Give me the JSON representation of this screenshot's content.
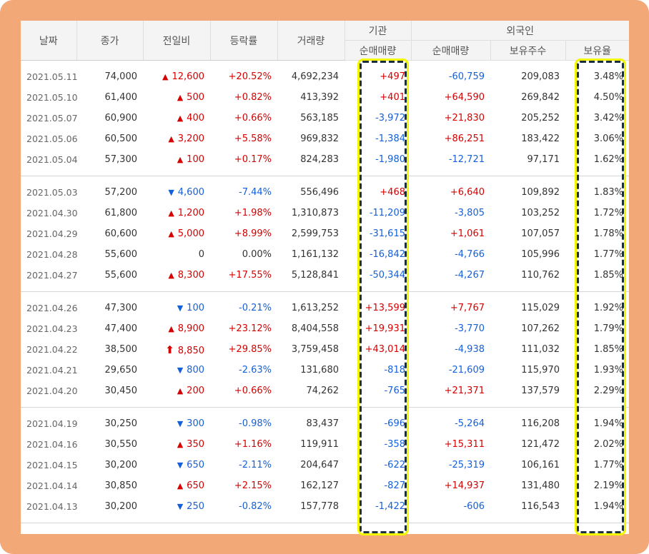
{
  "headers": {
    "date": "날짜",
    "close": "종가",
    "change": "전일비",
    "rate": "등락률",
    "volume": "거래량",
    "institution": "기관",
    "inst_net": "순매매량",
    "foreign": "외국인",
    "foreign_net": "순매매량",
    "holdings": "보유주수",
    "ownership": "보유율"
  },
  "groups": [
    [
      {
        "date": "2021.05.11",
        "close": "74,000",
        "dir": "up",
        "change": "12,600",
        "rate": "+20.52%",
        "volume": "4,692,234",
        "inst": "+497",
        "foreign": "-60,759",
        "holdings": "209,083",
        "ownership": "3.48%"
      },
      {
        "date": "2021.05.10",
        "close": "61,400",
        "dir": "up",
        "change": "500",
        "rate": "+0.82%",
        "volume": "413,392",
        "inst": "+401",
        "foreign": "+64,590",
        "holdings": "269,842",
        "ownership": "4.50%"
      },
      {
        "date": "2021.05.07",
        "close": "60,900",
        "dir": "up",
        "change": "400",
        "rate": "+0.66%",
        "volume": "563,185",
        "inst": "-3,972",
        "foreign": "+21,830",
        "holdings": "205,252",
        "ownership": "3.42%"
      },
      {
        "date": "2021.05.06",
        "close": "60,500",
        "dir": "up",
        "change": "3,200",
        "rate": "+5.58%",
        "volume": "969,832",
        "inst": "-1,384",
        "foreign": "+86,251",
        "holdings": "183,422",
        "ownership": "3.06%"
      },
      {
        "date": "2021.05.04",
        "close": "57,300",
        "dir": "up",
        "change": "100",
        "rate": "+0.17%",
        "volume": "824,283",
        "inst": "-1,980",
        "foreign": "-12,721",
        "holdings": "97,171",
        "ownership": "1.62%"
      }
    ],
    [
      {
        "date": "2021.05.03",
        "close": "57,200",
        "dir": "down",
        "change": "4,600",
        "rate": "-7.44%",
        "volume": "556,496",
        "inst": "+468",
        "foreign": "+6,640",
        "holdings": "109,892",
        "ownership": "1.83%"
      },
      {
        "date": "2021.04.30",
        "close": "61,800",
        "dir": "up",
        "change": "1,200",
        "rate": "+1.98%",
        "volume": "1,310,873",
        "inst": "-11,209",
        "foreign": "-3,805",
        "holdings": "103,252",
        "ownership": "1.72%"
      },
      {
        "date": "2021.04.29",
        "close": "60,600",
        "dir": "up",
        "change": "5,000",
        "rate": "+8.99%",
        "volume": "2,599,753",
        "inst": "-31,615",
        "foreign": "+1,061",
        "holdings": "107,057",
        "ownership": "1.78%"
      },
      {
        "date": "2021.04.28",
        "close": "55,600",
        "dir": "flat",
        "change": "0",
        "rate": "0.00%",
        "volume": "1,161,132",
        "inst": "-16,842",
        "foreign": "-4,766",
        "holdings": "105,996",
        "ownership": "1.77%"
      },
      {
        "date": "2021.04.27",
        "close": "55,600",
        "dir": "up",
        "change": "8,300",
        "rate": "+17.55%",
        "volume": "5,128,841",
        "inst": "-50,344",
        "foreign": "-4,267",
        "holdings": "110,762",
        "ownership": "1.85%"
      }
    ],
    [
      {
        "date": "2021.04.26",
        "close": "47,300",
        "dir": "down",
        "change": "100",
        "rate": "-0.21%",
        "volume": "1,613,252",
        "inst": "+13,599",
        "foreign": "+7,767",
        "holdings": "115,029",
        "ownership": "1.92%"
      },
      {
        "date": "2021.04.23",
        "close": "47,400",
        "dir": "up",
        "change": "8,900",
        "rate": "+23.12%",
        "volume": "8,404,558",
        "inst": "+19,931",
        "foreign": "-3,770",
        "holdings": "107,262",
        "ownership": "1.79%"
      },
      {
        "date": "2021.04.22",
        "close": "38,500",
        "dir": "limit",
        "change": "8,850",
        "rate": "+29.85%",
        "volume": "3,759,458",
        "inst": "+43,014",
        "foreign": "-4,938",
        "holdings": "111,032",
        "ownership": "1.85%"
      },
      {
        "date": "2021.04.21",
        "close": "29,650",
        "dir": "down",
        "change": "800",
        "rate": "-2.63%",
        "volume": "131,680",
        "inst": "-818",
        "foreign": "-21,609",
        "holdings": "115,970",
        "ownership": "1.93%"
      },
      {
        "date": "2021.04.20",
        "close": "30,450",
        "dir": "up",
        "change": "200",
        "rate": "+0.66%",
        "volume": "74,262",
        "inst": "-765",
        "foreign": "+21,371",
        "holdings": "137,579",
        "ownership": "2.29%"
      }
    ],
    [
      {
        "date": "2021.04.19",
        "close": "30,250",
        "dir": "down",
        "change": "300",
        "rate": "-0.98%",
        "volume": "83,437",
        "inst": "-696",
        "foreign": "-5,264",
        "holdings": "116,208",
        "ownership": "1.94%"
      },
      {
        "date": "2021.04.16",
        "close": "30,550",
        "dir": "up",
        "change": "350",
        "rate": "+1.16%",
        "volume": "119,911",
        "inst": "-358",
        "foreign": "+15,311",
        "holdings": "121,472",
        "ownership": "2.02%"
      },
      {
        "date": "2021.04.15",
        "close": "30,200",
        "dir": "down",
        "change": "650",
        "rate": "-2.11%",
        "volume": "204,647",
        "inst": "-622",
        "foreign": "-25,319",
        "holdings": "106,161",
        "ownership": "1.77%"
      },
      {
        "date": "2021.04.14",
        "close": "30,850",
        "dir": "up",
        "change": "650",
        "rate": "+2.15%",
        "volume": "162,127",
        "inst": "-827",
        "foreign": "+14,937",
        "holdings": "131,480",
        "ownership": "2.19%"
      },
      {
        "date": "2021.04.13",
        "close": "30,200",
        "dir": "down",
        "change": "250",
        "rate": "-0.82%",
        "volume": "157,778",
        "inst": "-1,422",
        "foreign": "-606",
        "holdings": "116,543",
        "ownership": "1.94%"
      }
    ]
  ],
  "colors": {
    "up": "#d60000",
    "down": "#1560d9",
    "frame": "#f2a877",
    "highlight_fill": "#f3f700",
    "highlight_dash": "#1c2f3f"
  },
  "icons": {
    "up": "up-triangle-icon",
    "down": "down-triangle-icon",
    "limit": "up-arrow-icon"
  }
}
